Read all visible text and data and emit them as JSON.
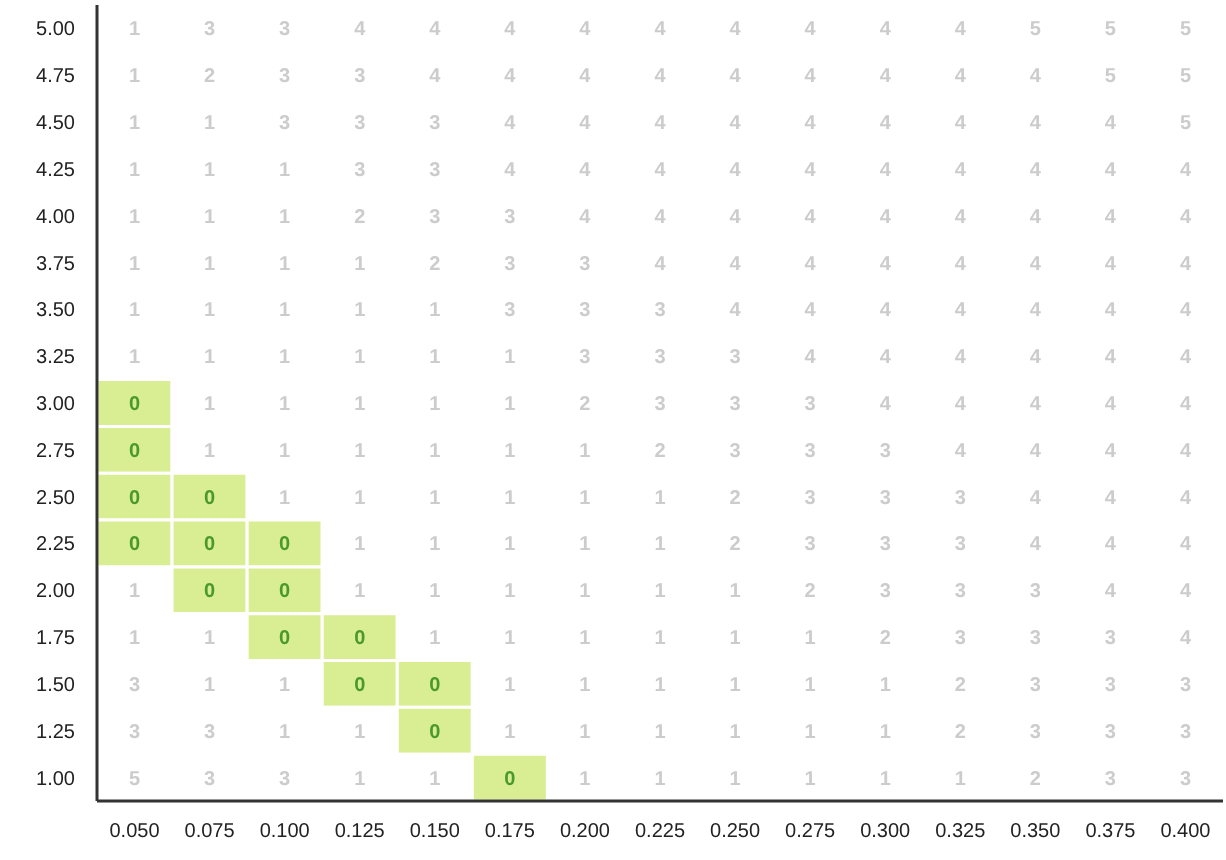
{
  "chart_data": {
    "type": "heatmap",
    "categories": [
      "0.050",
      "0.075",
      "0.100",
      "0.125",
      "0.150",
      "0.175",
      "0.200",
      "0.225",
      "0.250",
      "0.275",
      "0.300",
      "0.325",
      "0.350",
      "0.375",
      "0.400"
    ],
    "y_categories": [
      "5.00",
      "4.75",
      "4.50",
      "4.25",
      "4.00",
      "3.75",
      "3.50",
      "3.25",
      "3.00",
      "2.75",
      "2.50",
      "2.25",
      "2.00",
      "1.75",
      "1.50",
      "1.25",
      "1.00"
    ],
    "cells": [
      [
        1,
        3,
        3,
        4,
        4,
        4,
        4,
        4,
        4,
        4,
        4,
        4,
        5,
        5,
        5
      ],
      [
        1,
        2,
        3,
        3,
        4,
        4,
        4,
        4,
        4,
        4,
        4,
        4,
        4,
        5,
        5
      ],
      [
        1,
        1,
        3,
        3,
        3,
        4,
        4,
        4,
        4,
        4,
        4,
        4,
        4,
        4,
        5
      ],
      [
        1,
        1,
        1,
        3,
        3,
        4,
        4,
        4,
        4,
        4,
        4,
        4,
        4,
        4,
        4
      ],
      [
        1,
        1,
        1,
        2,
        3,
        3,
        4,
        4,
        4,
        4,
        4,
        4,
        4,
        4,
        4
      ],
      [
        1,
        1,
        1,
        1,
        2,
        3,
        3,
        4,
        4,
        4,
        4,
        4,
        4,
        4,
        4
      ],
      [
        1,
        1,
        1,
        1,
        1,
        3,
        3,
        3,
        4,
        4,
        4,
        4,
        4,
        4,
        4
      ],
      [
        1,
        1,
        1,
        1,
        1,
        1,
        3,
        3,
        3,
        4,
        4,
        4,
        4,
        4,
        4
      ],
      [
        0,
        1,
        1,
        1,
        1,
        1,
        2,
        3,
        3,
        3,
        4,
        4,
        4,
        4,
        4
      ],
      [
        0,
        1,
        1,
        1,
        1,
        1,
        1,
        2,
        3,
        3,
        3,
        4,
        4,
        4,
        4
      ],
      [
        0,
        0,
        1,
        1,
        1,
        1,
        1,
        1,
        2,
        3,
        3,
        3,
        4,
        4,
        4
      ],
      [
        0,
        0,
        0,
        1,
        1,
        1,
        1,
        1,
        2,
        3,
        3,
        3,
        4,
        4,
        4
      ],
      [
        1,
        0,
        0,
        1,
        1,
        1,
        1,
        1,
        1,
        2,
        3,
        3,
        3,
        4,
        4
      ],
      [
        1,
        1,
        0,
        0,
        1,
        1,
        1,
        1,
        1,
        1,
        2,
        3,
        3,
        3,
        4
      ],
      [
        3,
        1,
        1,
        0,
        0,
        1,
        1,
        1,
        1,
        1,
        1,
        2,
        3,
        3,
        3
      ],
      [
        3,
        3,
        1,
        1,
        0,
        1,
        1,
        1,
        1,
        1,
        1,
        2,
        3,
        3,
        3
      ],
      [
        5,
        3,
        3,
        1,
        1,
        0,
        1,
        1,
        1,
        1,
        1,
        1,
        2,
        3,
        3
      ]
    ],
    "colors": [
      "#d9ed92",
      "#ffffff",
      "#ffffff",
      "#ffffff",
      "#ffffff",
      "#ffffff"
    ],
    "data_labels": true
  }
}
